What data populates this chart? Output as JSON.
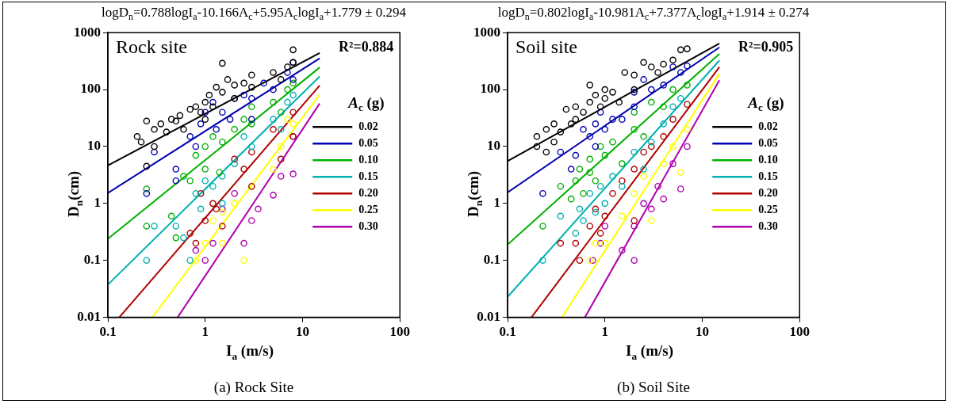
{
  "chart_data": [
    {
      "type": "scatter",
      "title": "logD$_{n}$=0.788logI$_{a}$-10.166A$_{c}$+5.95A$_{c}$logI$_{a}$+1.779 ± 0.294",
      "xlabel": "I$_{a}$ (m/s)",
      "ylabel": "D$_{n}$(cm)",
      "legend_title": "A$_{c}$ (g)",
      "annotations": [
        "Rock site",
        "R²=0.884",
        "(a) Rock Site"
      ],
      "log": "xy",
      "xlim": [
        0.1,
        100
      ],
      "ylim": [
        0.01,
        1000
      ],
      "xticks": [
        0.1,
        1,
        10,
        100
      ],
      "yticks": [
        0.01,
        0.1,
        1,
        10,
        100,
        1000
      ],
      "legend": "right",
      "marker": "circle",
      "series": [
        {
          "color": "#000000",
          "x": [
            0.2,
            0.22,
            0.25,
            0.25,
            0.3,
            0.3,
            0.35,
            0.4,
            0.45,
            0.5,
            0.55,
            0.6,
            0.7,
            0.8,
            0.9,
            1,
            1,
            1.1,
            1.2,
            1.3,
            1.5,
            1.5,
            1.7,
            2,
            2,
            2.5,
            3,
            3,
            5,
            6,
            7,
            8,
            8
          ],
          "values": [
            15,
            12,
            28,
            4.5,
            20,
            10,
            25,
            18,
            30,
            28,
            35,
            20,
            45,
            50,
            40,
            30,
            60,
            80,
            50,
            110,
            290,
            90,
            150,
            120,
            70,
            130,
            180,
            110,
            200,
            150,
            250,
            500,
            300
          ]
        },
        {
          "color": "#0000b0",
          "x": [
            0.25,
            0.3,
            0.5,
            0.5,
            0.7,
            0.8,
            0.9,
            1,
            1.2,
            1.3,
            1.5,
            1.8,
            2,
            2.5,
            3,
            3,
            4,
            5,
            7,
            8,
            8
          ],
          "values": [
            1.5,
            8,
            4,
            2.5,
            15,
            10,
            25,
            40,
            60,
            20,
            40,
            30,
            70,
            80,
            70,
            30,
            130,
            100,
            200,
            300,
            150
          ]
        },
        {
          "color": "#00b000",
          "x": [
            0.25,
            0.25,
            0.45,
            0.5,
            0.6,
            0.7,
            0.8,
            1,
            1,
            1.2,
            1.4,
            1.5,
            2,
            2.5,
            3,
            3,
            5,
            6,
            7,
            8
          ],
          "values": [
            1.8,
            0.4,
            0.6,
            0.25,
            3,
            2.5,
            7,
            10,
            4,
            15,
            3.5,
            12,
            20,
            30,
            25,
            50,
            60,
            40,
            100,
            130
          ]
        },
        {
          "color": "#00b0b0",
          "x": [
            0.25,
            0.3,
            0.5,
            0.6,
            0.7,
            0.8,
            0.9,
            1,
            1.2,
            1.5,
            1.5,
            2,
            2.5,
            3,
            5,
            6,
            7,
            8
          ],
          "values": [
            0.1,
            0.4,
            0.4,
            0.25,
            0.1,
            1.5,
            0.8,
            2.5,
            2,
            3,
            1,
            5,
            15,
            10,
            30,
            20,
            60,
            80
          ]
        },
        {
          "color": "#b00000",
          "x": [
            0.7,
            0.8,
            0.9,
            1,
            1.2,
            1.3,
            1.5,
            2,
            2.5,
            3,
            3,
            5,
            6,
            8,
            8
          ],
          "values": [
            0.3,
            0.2,
            1.5,
            0.5,
            1,
            0.8,
            0.4,
            6,
            4,
            8,
            2,
            20,
            6,
            40,
            15
          ]
        },
        {
          "color": "#ffff00",
          "x": [
            0.8,
            1,
            1.2,
            1.5,
            1.5,
            2,
            2.5,
            3,
            5,
            6,
            7,
            8
          ],
          "values": [
            0.1,
            0.2,
            0.5,
            0.7,
            0.2,
            1,
            0.1,
            2,
            4,
            10,
            30,
            25
          ]
        },
        {
          "color": "#b000b0",
          "x": [
            0.8,
            1,
            1.2,
            1.5,
            2,
            2.5,
            3,
            3.5,
            5,
            6,
            8,
            8
          ],
          "values": [
            0.15,
            0.1,
            0.2,
            0.8,
            1.5,
            0.2,
            0.5,
            0.8,
            1.4,
            3,
            3.3,
            15
          ]
        },
        {
          "type": "line",
          "marker": "none",
          "name": "0.02",
          "color": "#000000",
          "x": [
            0.1,
            15
          ],
          "values": [
            4.66,
            439
          ]
        },
        {
          "type": "line",
          "marker": "none",
          "name": "0.05",
          "color": "#0000b0",
          "x": [
            0.1,
            15
          ],
          "values": [
            1.53,
            353
          ]
        },
        {
          "type": "line",
          "marker": "none",
          "name": "0.10",
          "color": "#00b000",
          "x": [
            0.1,
            15
          ],
          "values": [
            0.239,
            245
          ]
        },
        {
          "type": "line",
          "marker": "none",
          "name": "0.15",
          "color": "#00b0b0",
          "x": [
            0.1,
            15
          ],
          "values": [
            0.0375,
            170
          ]
        },
        {
          "type": "line",
          "marker": "none",
          "name": "0.20",
          "color": "#b00000",
          "x": [
            0.131,
            15
          ],
          "values": [
            0.01,
            118
          ]
        },
        {
          "type": "line",
          "marker": "none",
          "name": "0.25",
          "color": "#ffff00",
          "x": [
            0.286,
            15
          ],
          "values": [
            0.01,
            82
          ]
        },
        {
          "type": "line",
          "marker": "none",
          "name": "0.30",
          "color": "#b000b0",
          "x": [
            0.521,
            15
          ],
          "values": [
            0.01,
            57
          ]
        }
      ]
    },
    {
      "type": "scatter",
      "title": "logD$_{n}$=0.802logI$_{a}$-10.981A$_{c}$+7.377A$_{c}$logI$_{a}$+1.914 ± 0.274",
      "xlabel": "I$_{a}$ (m/s)",
      "ylabel": "D$_{n}$(cm)",
      "legend_title": "A$_{c}$ (g)",
      "annotations": [
        "Soil site",
        "R²=0.905",
        "(b) Soil Site"
      ],
      "log": "xy",
      "xlim": [
        0.1,
        100
      ],
      "ylim": [
        0.01,
        1000
      ],
      "xticks": [
        0.1,
        1,
        10,
        100
      ],
      "yticks": [
        0.01,
        0.1,
        1,
        10,
        100,
        1000
      ],
      "legend": "right",
      "marker": "circle",
      "series": [
        {
          "color": "#000000",
          "x": [
            0.2,
            0.2,
            0.25,
            0.25,
            0.3,
            0.3,
            0.35,
            0.4,
            0.45,
            0.5,
            0.5,
            0.6,
            0.7,
            0.7,
            0.8,
            0.9,
            1,
            1,
            1.2,
            1.4,
            1.6,
            2,
            2,
            2.5,
            3,
            3.5,
            4,
            5,
            6,
            7
          ],
          "values": [
            15,
            10,
            8,
            20,
            25,
            12,
            18,
            45,
            25,
            30,
            50,
            40,
            120,
            60,
            80,
            50,
            100,
            70,
            90,
            60,
            200,
            180,
            100,
            300,
            250,
            200,
            280,
            330,
            500,
            520
          ]
        },
        {
          "color": "#0000b0",
          "x": [
            0.23,
            0.35,
            0.45,
            0.5,
            0.6,
            0.7,
            0.8,
            0.8,
            0.9,
            1,
            1.2,
            1.5,
            2,
            2,
            2.5,
            3,
            4,
            5,
            6,
            7
          ],
          "values": [
            1.5,
            8,
            4,
            7,
            20,
            15,
            25,
            10,
            40,
            20,
            30,
            30,
            50,
            90,
            150,
            100,
            120,
            250,
            200,
            260
          ]
        },
        {
          "color": "#00b000",
          "x": [
            0.23,
            0.35,
            0.45,
            0.5,
            0.55,
            0.6,
            0.7,
            0.7,
            0.8,
            0.9,
            1,
            1.2,
            1.5,
            2,
            2,
            2.5,
            3,
            4,
            5,
            7
          ],
          "values": [
            0.4,
            2,
            1.2,
            2.5,
            4,
            1.5,
            3.5,
            6,
            2.5,
            10,
            7,
            12,
            5,
            20,
            40,
            15,
            60,
            50,
            100,
            120
          ]
        },
        {
          "color": "#00b0b0",
          "x": [
            0.23,
            0.35,
            0.5,
            0.55,
            0.6,
            0.7,
            0.8,
            0.9,
            1,
            1.2,
            1.5,
            2,
            2.5,
            3,
            4,
            5,
            6
          ],
          "values": [
            0.1,
            0.6,
            0.3,
            0.8,
            0.5,
            1.5,
            0.7,
            2,
            1,
            3,
            2,
            8,
            4,
            12,
            25,
            50,
            70
          ]
        },
        {
          "color": "#b00000",
          "x": [
            0.35,
            0.5,
            0.55,
            0.7,
            0.8,
            0.9,
            1,
            1.2,
            1.5,
            2,
            2,
            2.5,
            3,
            4,
            5,
            7
          ],
          "values": [
            0.2,
            0.2,
            0.1,
            0.4,
            0.8,
            0.3,
            0.6,
            1.5,
            2.5,
            4,
            0.5,
            8,
            10,
            15,
            30,
            55
          ]
        },
        {
          "color": "#ffff00",
          "x": [
            0.7,
            0.8,
            1,
            1.5,
            2,
            2.5,
            3,
            4,
            5,
            6,
            7
          ],
          "values": [
            0.1,
            0.2,
            0.2,
            0.6,
            1.5,
            3,
            0.5,
            5,
            10,
            3.5,
            20
          ]
        },
        {
          "color": "#b000b0",
          "x": [
            0.75,
            0.9,
            1,
            1.5,
            2,
            2,
            2.5,
            3,
            3.5,
            4,
            5,
            6,
            7
          ],
          "values": [
            0.1,
            0.2,
            0.4,
            0.15,
            0.1,
            0.4,
            1,
            0.8,
            2,
            1.2,
            5,
            1.8,
            10
          ]
        },
        {
          "type": "line",
          "marker": "none",
          "name": "0.02",
          "color": "#000000",
          "x": [
            0.1,
            15
          ],
          "values": [
            5.56,
            647
          ]
        },
        {
          "type": "line",
          "marker": "none",
          "name": "0.05",
          "color": "#0000b0",
          "x": [
            0.1,
            15
          ],
          "values": [
            1.56,
            552
          ]
        },
        {
          "type": "line",
          "marker": "none",
          "name": "0.10",
          "color": "#00b000",
          "x": [
            0.1,
            15
          ],
          "values": [
            0.189,
            423
          ]
        },
        {
          "type": "line",
          "marker": "none",
          "name": "0.15",
          "color": "#00b0b0",
          "x": [
            0.1,
            15
          ],
          "values": [
            0.0228,
            325
          ]
        },
        {
          "type": "line",
          "marker": "none",
          "name": "0.20",
          "color": "#b00000",
          "x": [
            0.176,
            15
          ],
          "values": [
            0.01,
            249
          ]
        },
        {
          "type": "line",
          "marker": "none",
          "name": "0.25",
          "color": "#ffff00",
          "x": [
            0.362,
            15
          ],
          "values": [
            0.01,
            191
          ]
        },
        {
          "type": "line",
          "marker": "none",
          "name": "0.30",
          "color": "#b000b0",
          "x": [
            0.623,
            15
          ],
          "values": [
            0.01,
            146
          ]
        }
      ]
    }
  ]
}
